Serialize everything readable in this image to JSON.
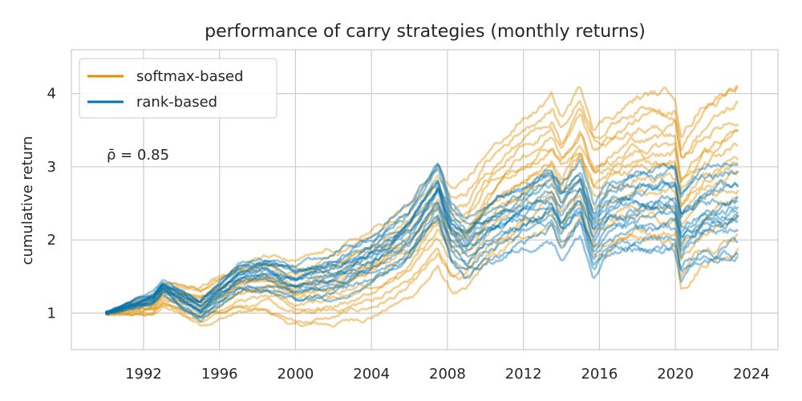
{
  "chart_data": {
    "type": "line",
    "title": "performance of carry strategies (monthly returns)",
    "xlabel": "",
    "ylabel": "cumulative return",
    "xlim": [
      1988.2,
      2025.4
    ],
    "ylim": [
      0.5,
      4.6
    ],
    "x_ticks": [
      1992,
      1996,
      2000,
      2004,
      2008,
      2012,
      2016,
      2020,
      2024
    ],
    "y_ticks": [
      1,
      2,
      3,
      4
    ],
    "grid": true,
    "legend_position": "top-left",
    "annotation": "ρ̄ = 0.85",
    "groups": [
      {
        "name": "softmax-based",
        "color": "#de8f05",
        "x": [
          1990,
          1992.5,
          1993,
          1995,
          1997,
          1998.5,
          2000,
          2002,
          2004,
          2006,
          2007.5,
          2008.2,
          2009,
          2010,
          2012,
          2013.5,
          2014,
          2015,
          2015.7,
          2016.5,
          2018,
          2020,
          2020.3,
          2021.5,
          2023.3
        ],
        "median_path": [
          1.0,
          1.1,
          1.25,
          1.1,
          1.35,
          1.4,
          1.25,
          1.35,
          1.55,
          1.85,
          2.3,
          2.0,
          2.0,
          2.4,
          2.85,
          3.1,
          2.8,
          3.2,
          2.7,
          2.8,
          3.0,
          3.0,
          2.45,
          2.85,
          3.1
        ],
        "offsets_at_end": [
          -1.15,
          -0.95,
          -0.75,
          -0.55,
          -0.35,
          -0.2,
          -0.05,
          0.05,
          0.2,
          0.3,
          0.45,
          0.6,
          0.75,
          0.95,
          1.1
        ]
      },
      {
        "name": "rank-based",
        "color": "#0173b2",
        "x": [
          1990,
          1992.5,
          1993,
          1995,
          1997,
          1998.5,
          2000,
          2002,
          2004,
          2006,
          2007.5,
          2008.2,
          2009,
          2010,
          2012,
          2013.5,
          2014,
          2015,
          2015.7,
          2016.5,
          2018,
          2020,
          2020.3,
          2021.5,
          2023.3
        ],
        "median_path": [
          1.0,
          1.2,
          1.35,
          1.05,
          1.5,
          1.55,
          1.4,
          1.5,
          1.75,
          2.1,
          2.7,
          2.1,
          1.9,
          2.1,
          2.35,
          2.55,
          2.3,
          2.6,
          2.0,
          2.3,
          2.4,
          2.45,
          2.05,
          2.3,
          2.4
        ]
      }
    ]
  },
  "legend": [
    {
      "label": "softmax-based",
      "color": "#de8f05"
    },
    {
      "label": "rank-based",
      "color": "#0173b2"
    }
  ]
}
